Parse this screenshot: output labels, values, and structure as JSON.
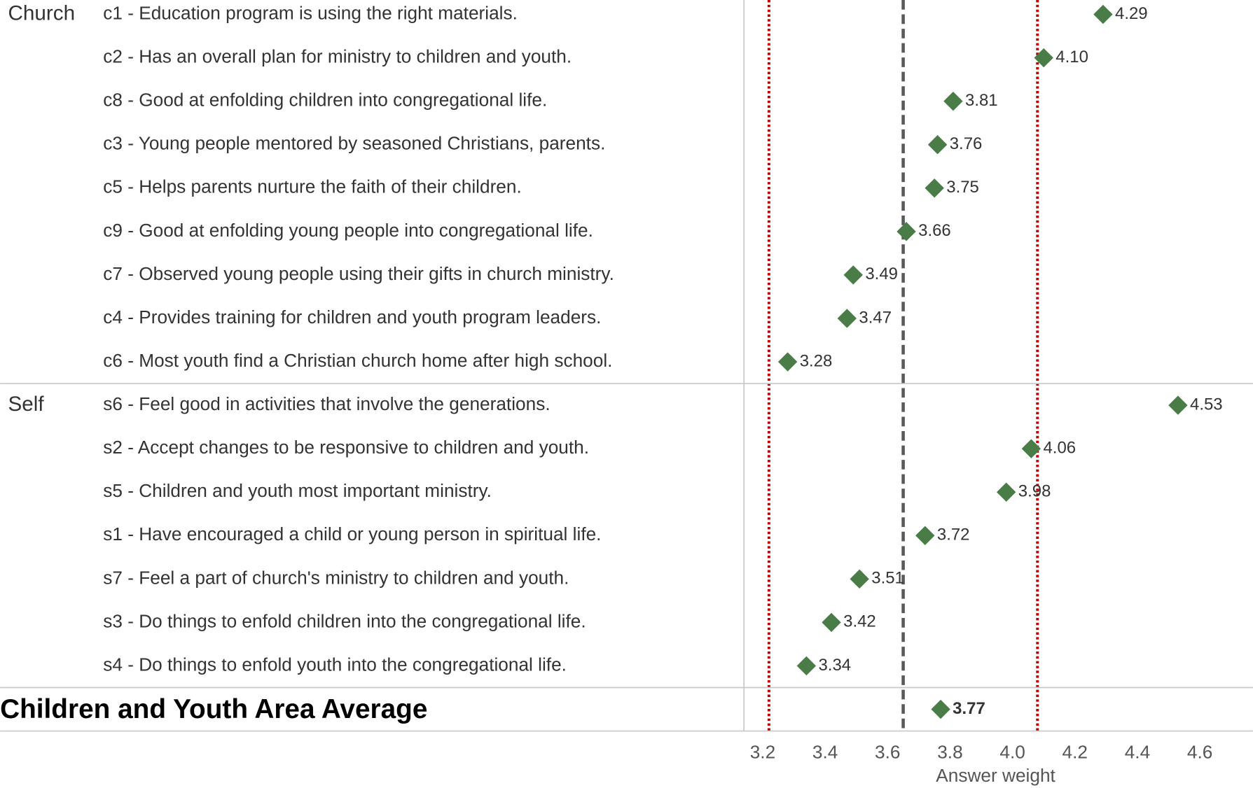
{
  "chart_data": {
    "type": "dot",
    "xlabel": "Answer weight",
    "xlim": [
      3.14,
      4.77
    ],
    "xticks": [
      3.2,
      3.4,
      3.6,
      3.8,
      {
        "value": 4,
        "label": "4.0"
      },
      4.2,
      4.4,
      4.6
    ],
    "color": "#4a7c47",
    "groups": [
      {
        "name": "Church",
        "categories": [
          "c1 - Education program is using the right materials.",
          "c2 - Has an overall plan for ministry to children and youth.",
          "c8 - Good at enfolding children into congregational life.",
          "c3 - Young people mentored by seasoned Christians, parents.",
          "c5 - Helps parents nurture the faith of their children.",
          "c9 - Good at enfolding young people into congregational life.",
          "c7 - Observed young people using their gifts in church ministry.",
          "c4 - Provides training for children and youth program leaders.",
          "c6 - Most youth find a Christian church home after high school."
        ],
        "values": [
          4.29,
          4.1,
          3.81,
          3.76,
          3.75,
          3.66,
          3.49,
          3.47,
          3.28
        ],
        "value_labels": [
          "4.29",
          "4.10",
          "3.81",
          "3.76",
          "3.75",
          "3.66",
          "3.49",
          "3.47",
          "3.28"
        ]
      },
      {
        "name": "Self",
        "categories": [
          "s6 - Feel good in activities that involve the generations.",
          "s2 - Accept changes to be responsive to children and youth.",
          "s5 - Children and youth most important ministry.",
          "s1 - Have encouraged a child or young person in spiritual life.",
          "s7 - Feel a part of church's ministry to children and youth.",
          "s3 - Do things to enfold children into the congregational life.",
          "s4 - Do things to enfold youth into the congregational life."
        ],
        "values": [
          4.53,
          4.06,
          3.98,
          3.72,
          3.51,
          3.42,
          3.34
        ],
        "value_labels": [
          "4.53",
          "4.06",
          "3.98",
          "3.72",
          "3.51",
          "3.42",
          "3.34"
        ]
      }
    ],
    "average": {
      "label": "Children and Youth Area Average",
      "value": 3.77
    },
    "reference_lines": [
      {
        "value": 3.22,
        "color": "#c00000",
        "style": "dotted"
      },
      {
        "value": 3.65,
        "color": "#595959",
        "style": "dashed"
      },
      {
        "value": 4.08,
        "color": "#c00000",
        "style": "dotted"
      }
    ]
  }
}
